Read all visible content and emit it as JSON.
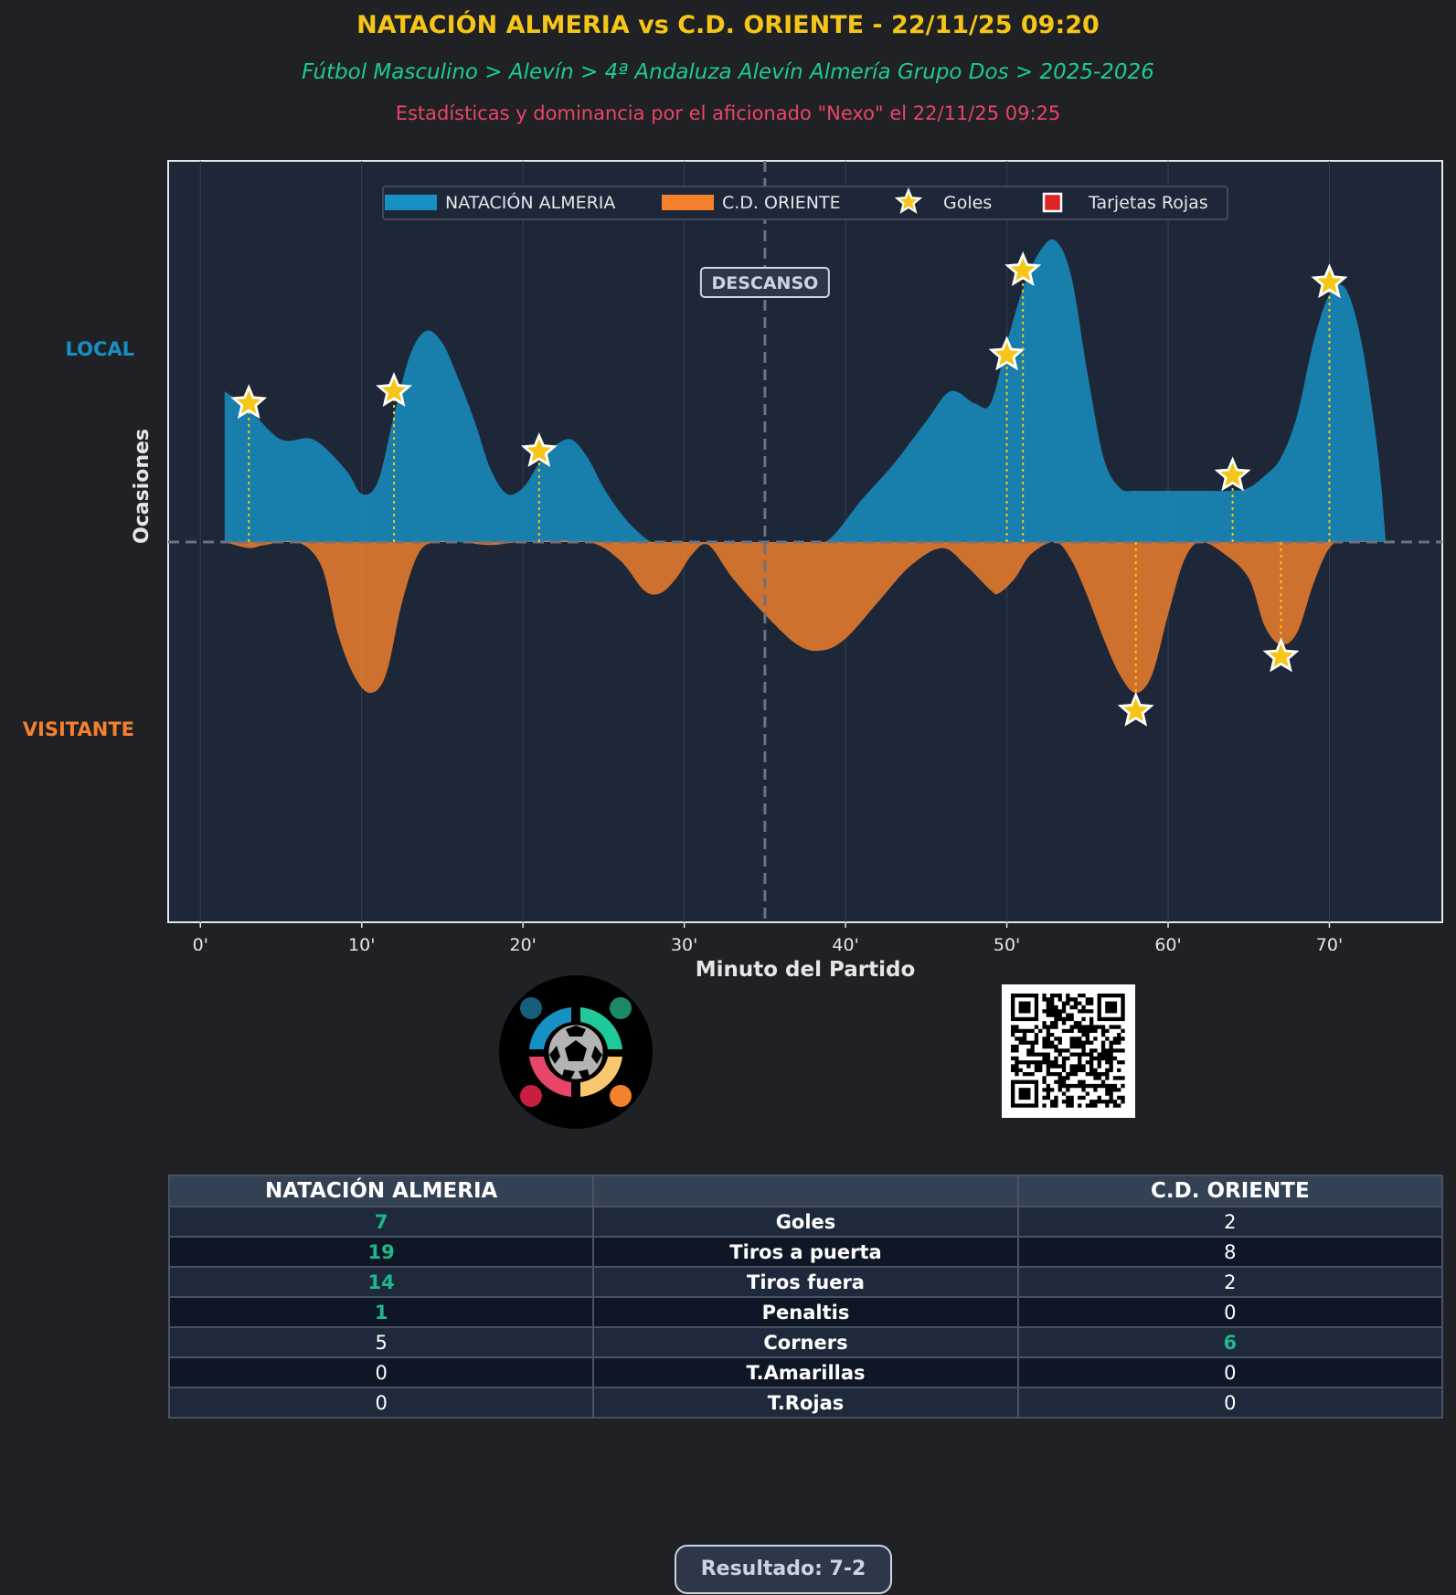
{
  "header": {
    "title": "NATACIÓN ALMERIA vs C.D. ORIENTE - 22/11/25 09:20",
    "subtitle": "Fútbol Masculino > Alevín > 4ª Andaluza Alevín Almería Grupo Dos > 2025-2026",
    "credit": "Estadísticas y dominancia por el aficionado \"Nexo\" el 22/11/25 09:25"
  },
  "side_labels": {
    "local": "LOCAL",
    "visitor": "VISITANTE"
  },
  "colors": {
    "home": "#1791c4",
    "away": "#f5812d",
    "goal_star": "#f5c518",
    "red_card": "#dc2626",
    "panel": "#1e2738"
  },
  "chart_data": {
    "type": "area",
    "title": "",
    "xlabel": "Minuto del Partido",
    "ylabel": "Ocasiones",
    "xlim": [
      -2,
      77
    ],
    "ylim": [
      -7,
      7
    ],
    "x_ticks": [
      0,
      10,
      20,
      30,
      40,
      50,
      60,
      70
    ],
    "x_tick_labels": [
      "0'",
      "10'",
      "20'",
      "30'",
      "40'",
      "50'",
      "60'",
      "70'"
    ],
    "halftime_minute": 35,
    "halftime_label": "DESCANSO",
    "legend": {
      "position": "top-center",
      "entries": [
        "NATACIÓN ALMERIA",
        "C.D. ORIENTE",
        "Goles",
        "Tarjetas Rojas"
      ]
    },
    "series": [
      {
        "name": "NATACIÓN ALMERIA",
        "x": [
          1.5,
          3,
          5,
          7,
          9,
          10,
          11,
          12,
          13,
          14,
          15,
          16,
          17,
          18,
          19,
          20,
          21,
          22,
          23,
          24,
          25,
          26,
          27,
          28,
          29,
          30,
          32,
          34,
          36,
          37.5,
          39,
          41,
          43,
          45,
          46.5,
          48,
          49,
          50,
          51,
          52,
          53,
          54,
          55,
          56,
          57,
          58,
          60,
          62,
          64,
          65,
          66,
          67,
          68,
          69,
          70,
          71,
          72,
          73,
          73.5
        ],
        "values": [
          2.5,
          2.2,
          1.7,
          1.7,
          1.2,
          0.8,
          1.0,
          2.1,
          3.1,
          3.5,
          3.3,
          2.7,
          2.0,
          1.2,
          0.8,
          0.9,
          1.3,
          1.6,
          1.7,
          1.4,
          0.9,
          0.5,
          0.2,
          0.0,
          0.0,
          0.0,
          0.0,
          0.0,
          0.0,
          0.0,
          0.05,
          0.7,
          1.3,
          2.0,
          2.5,
          2.3,
          2.3,
          3.3,
          4.2,
          4.8,
          5.0,
          4.4,
          2.8,
          1.4,
          0.9,
          0.85,
          0.85,
          0.85,
          0.85,
          0.9,
          1.1,
          1.4,
          2.1,
          3.3,
          4.1,
          4.2,
          3.3,
          1.5,
          0.0
        ]
      },
      {
        "name": "C.D. ORIENTE",
        "x": [
          1.5,
          3,
          4,
          6,
          7.5,
          8.5,
          9.5,
          10.5,
          11.5,
          12.5,
          13.5,
          14.5,
          16,
          18,
          20,
          24,
          26,
          27.5,
          28.5,
          29.5,
          30.5,
          31.5,
          33,
          35,
          37,
          38.5,
          40,
          42,
          44,
          46,
          47.5,
          49,
          49.5,
          50.5,
          51.5,
          53,
          54,
          55,
          56,
          57,
          58,
          59,
          60,
          61,
          62,
          63.5,
          65,
          66,
          67,
          68,
          69,
          70,
          71,
          73.5
        ],
        "values": [
          0.0,
          -0.1,
          -0.05,
          0.0,
          -0.4,
          -1.5,
          -2.2,
          -2.5,
          -2.2,
          -1.0,
          -0.2,
          0.0,
          0.0,
          -0.05,
          0.0,
          0.0,
          -0.3,
          -0.8,
          -0.85,
          -0.6,
          -0.2,
          -0.05,
          -0.6,
          -1.2,
          -1.7,
          -1.8,
          -1.6,
          -1.0,
          -0.4,
          -0.1,
          -0.4,
          -0.8,
          -0.85,
          -0.6,
          -0.2,
          0.0,
          -0.3,
          -0.9,
          -1.6,
          -2.2,
          -2.5,
          -2.2,
          -1.2,
          -0.3,
          0.0,
          -0.2,
          -0.6,
          -1.4,
          -1.7,
          -1.5,
          -0.7,
          -0.1,
          0.0,
          0.0
        ]
      }
    ],
    "goals": [
      {
        "team": "NATACIÓN ALMERIA",
        "minute": 3,
        "value": 2.3
      },
      {
        "team": "NATACIÓN ALMERIA",
        "minute": 12,
        "value": 2.5
      },
      {
        "team": "NATACIÓN ALMERIA",
        "minute": 21,
        "value": 1.5
      },
      {
        "team": "NATACIÓN ALMERIA",
        "minute": 50,
        "value": 3.1
      },
      {
        "team": "NATACIÓN ALMERIA",
        "minute": 51,
        "value": 4.5
      },
      {
        "team": "NATACIÓN ALMERIA",
        "minute": 64,
        "value": 1.1
      },
      {
        "team": "NATACIÓN ALMERIA",
        "minute": 70,
        "value": 4.3
      },
      {
        "team": "C.D. ORIENTE",
        "minute": 58,
        "value": -2.8
      },
      {
        "team": "C.D. ORIENTE",
        "minute": 67,
        "value": -1.9
      }
    ],
    "red_cards": []
  },
  "stats": {
    "home_team": "NATACIÓN ALMERIA",
    "away_team": "C.D. ORIENTE",
    "middle_header": "",
    "rows": [
      {
        "label": "Goles",
        "home": "7",
        "away": "2",
        "leader": "home"
      },
      {
        "label": "Tiros a puerta",
        "home": "19",
        "away": "8",
        "leader": "home"
      },
      {
        "label": "Tiros fuera",
        "home": "14",
        "away": "2",
        "leader": "home"
      },
      {
        "label": "Penaltis",
        "home": "1",
        "away": "0",
        "leader": "home"
      },
      {
        "label": "Corners",
        "home": "5",
        "away": "6",
        "leader": "away"
      },
      {
        "label": "T.Amarillas",
        "home": "0",
        "away": "0",
        "leader": "none"
      },
      {
        "label": "T.Rojas",
        "home": "0",
        "away": "0",
        "leader": "none"
      }
    ]
  },
  "result": "Resultado: 7-2"
}
